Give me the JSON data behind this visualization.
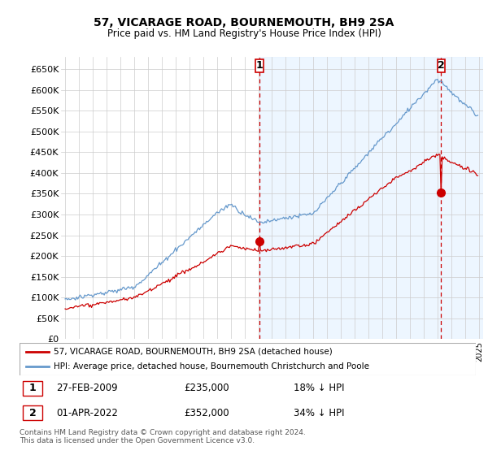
{
  "title": "57, VICARAGE ROAD, BOURNEMOUTH, BH9 2SA",
  "subtitle": "Price paid vs. HM Land Registry's House Price Index (HPI)",
  "property_label": "57, VICARAGE ROAD, BOURNEMOUTH, BH9 2SA (detached house)",
  "hpi_label": "HPI: Average price, detached house, Bournemouth Christchurch and Poole",
  "footer": "Contains HM Land Registry data © Crown copyright and database right 2024.\nThis data is licensed under the Open Government Licence v3.0.",
  "sale1_date": "27-FEB-2009",
  "sale1_price": "£235,000",
  "sale1_hpi": "18% ↓ HPI",
  "sale2_date": "01-APR-2022",
  "sale2_price": "£352,000",
  "sale2_hpi": "34% ↓ HPI",
  "property_color": "#cc0000",
  "hpi_color": "#6699cc",
  "hpi_fill_color": "#ddeeff",
  "background_color": "#ffffff",
  "grid_color": "#cccccc",
  "ylim": [
    0,
    680000
  ],
  "yticks": [
    0,
    50000,
    100000,
    150000,
    200000,
    250000,
    300000,
    350000,
    400000,
    450000,
    500000,
    550000,
    600000,
    650000
  ],
  "sale1_year": 2009.12,
  "sale1_price_val": 235000,
  "sale2_year": 2022.25,
  "sale2_price_val": 352000,
  "xmin": 1994.7,
  "xmax": 2025.3
}
